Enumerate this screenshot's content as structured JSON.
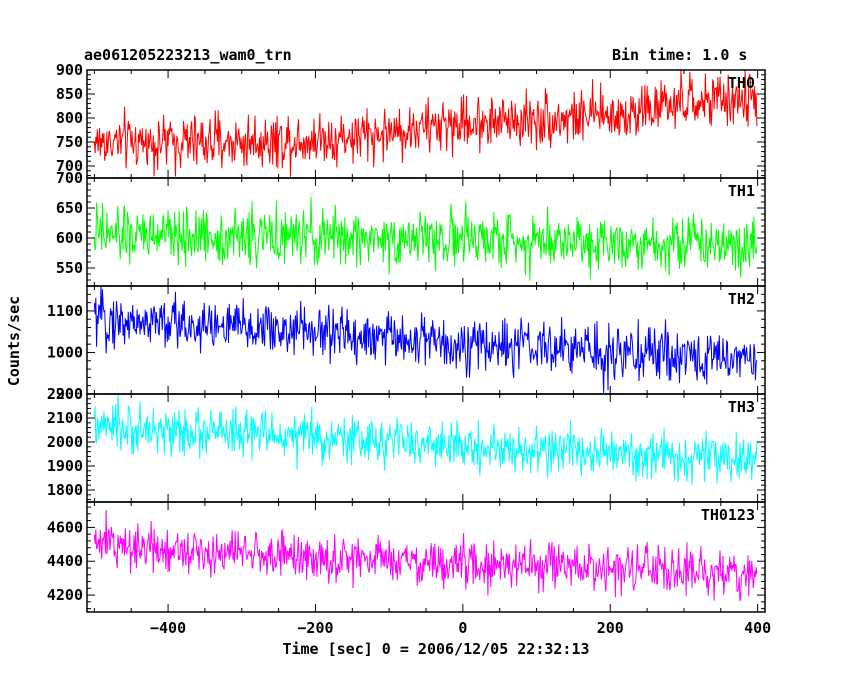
{
  "header": {
    "title": "ae061205223213_wam0_trn",
    "bin_time": "Bin time: 1.0 s"
  },
  "chart_data": {
    "type": "line",
    "xlabel": "Time [sec] 0 = 2006/12/05 22:32:13",
    "ylabel": "Counts/sec",
    "xlim": [
      -510,
      410
    ],
    "x_ticks": [
      -400,
      -200,
      0,
      200,
      400
    ],
    "x_range": [
      -500,
      399
    ],
    "bin_time_s": 1.0,
    "panels": [
      {
        "name": "TH0",
        "color": "#ff0000",
        "ylim": [
          675,
          900
        ],
        "yticks": [
          700,
          750,
          800,
          850,
          900
        ],
        "trend_x": [
          -500,
          -300,
          -150,
          0,
          200,
          300,
          400
        ],
        "trend_y": [
          750,
          750,
          760,
          790,
          805,
          830,
          840
        ],
        "noise": 28
      },
      {
        "name": "TH1",
        "color": "#00ff00",
        "ylim": [
          520,
          700
        ],
        "yticks": [
          550,
          600,
          650,
          700
        ],
        "trend_x": [
          -500,
          0,
          400
        ],
        "trend_y": [
          605,
          598,
          592
        ],
        "noise": 23
      },
      {
        "name": "TH2",
        "color": "#0000ff",
        "ylim": [
          900,
          1160
        ],
        "yticks": [
          900,
          1000,
          1100
        ],
        "trend_x": [
          -500,
          -200,
          0,
          200,
          400
        ],
        "trend_y": [
          1080,
          1050,
          1020,
          1000,
          985
        ],
        "noise": 32
      },
      {
        "name": "TH3",
        "color": "#00ffff",
        "ylim": [
          1750,
          2200
        ],
        "yticks": [
          1800,
          1900,
          2000,
          2100,
          2200
        ],
        "trend_x": [
          -500,
          -200,
          0,
          200,
          400
        ],
        "trend_y": [
          2060,
          2020,
          1980,
          1950,
          1920
        ],
        "noise": 48
      },
      {
        "name": "TH0123",
        "color": "#ff00ff",
        "ylim": [
          4100,
          4750
        ],
        "yticks": [
          4200,
          4400,
          4600
        ],
        "trend_x": [
          -500,
          -200,
          0,
          200,
          400
        ],
        "trend_y": [
          4510,
          4420,
          4380,
          4360,
          4320
        ],
        "noise": 68
      }
    ]
  }
}
